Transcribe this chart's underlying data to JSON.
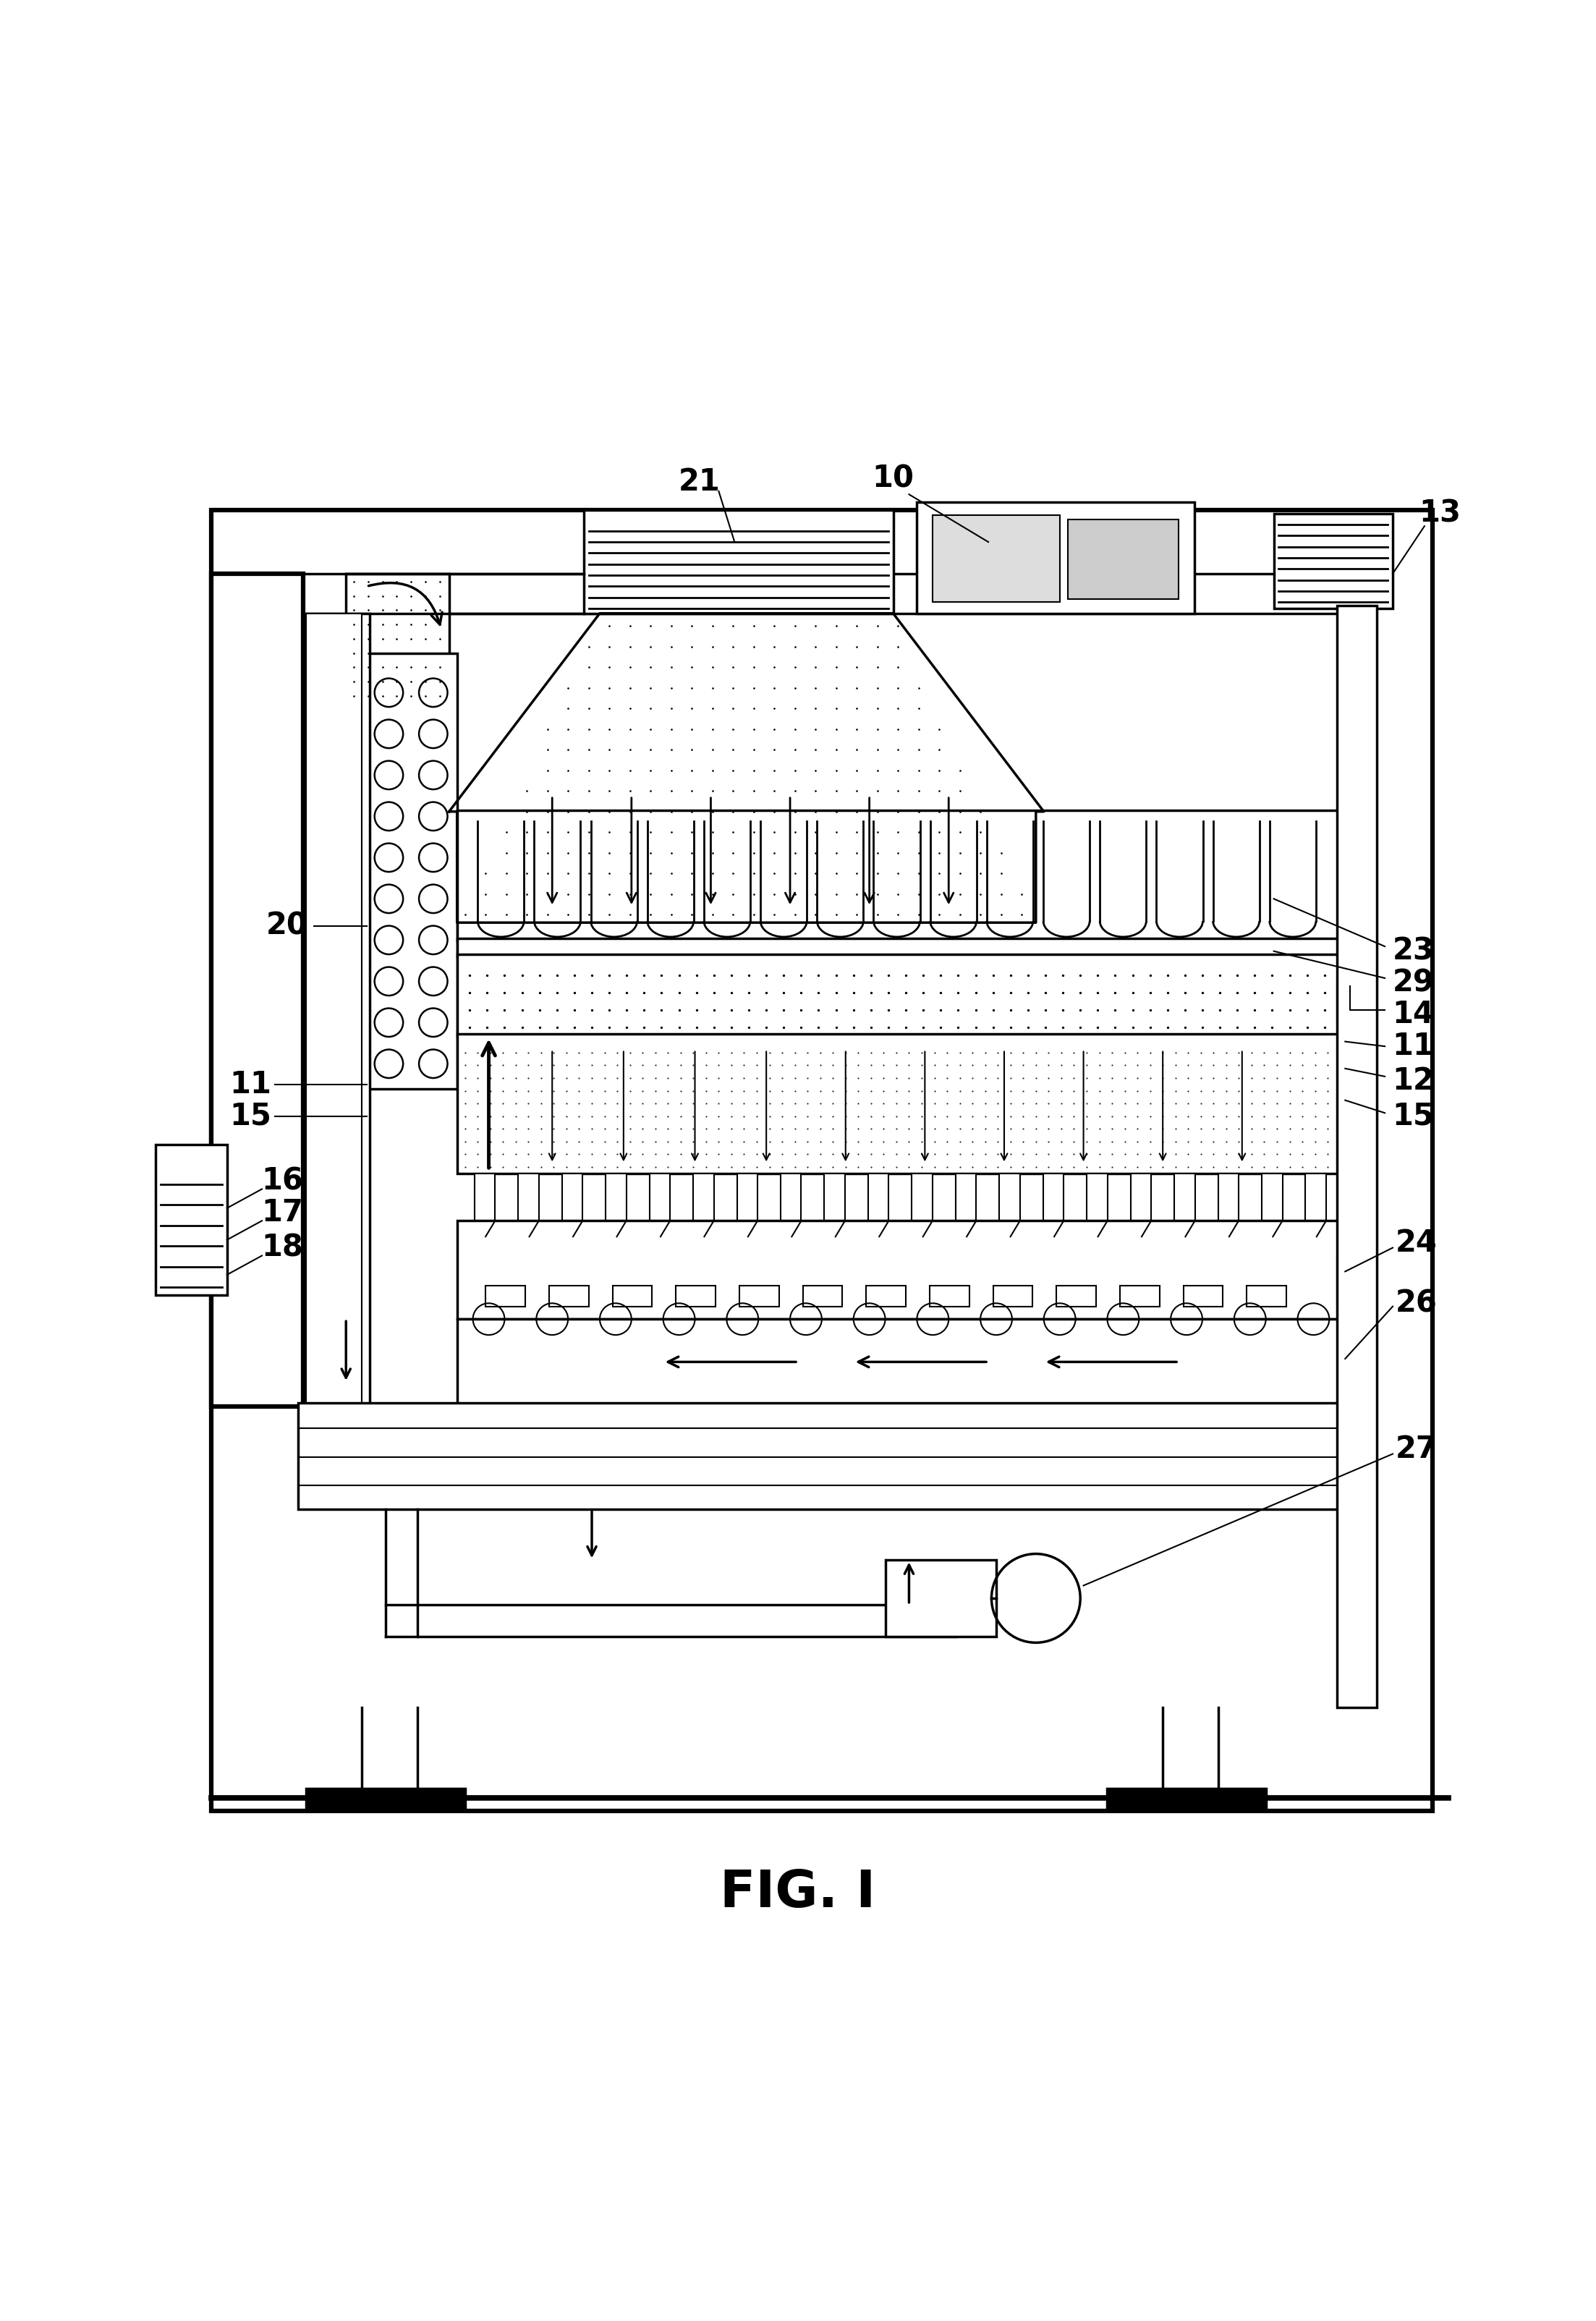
{
  "title": "FIG. I",
  "title_fontsize": 52,
  "background_color": "#ffffff",
  "line_color": "#000000",
  "fig_width": 22.06,
  "fig_height": 32.08
}
